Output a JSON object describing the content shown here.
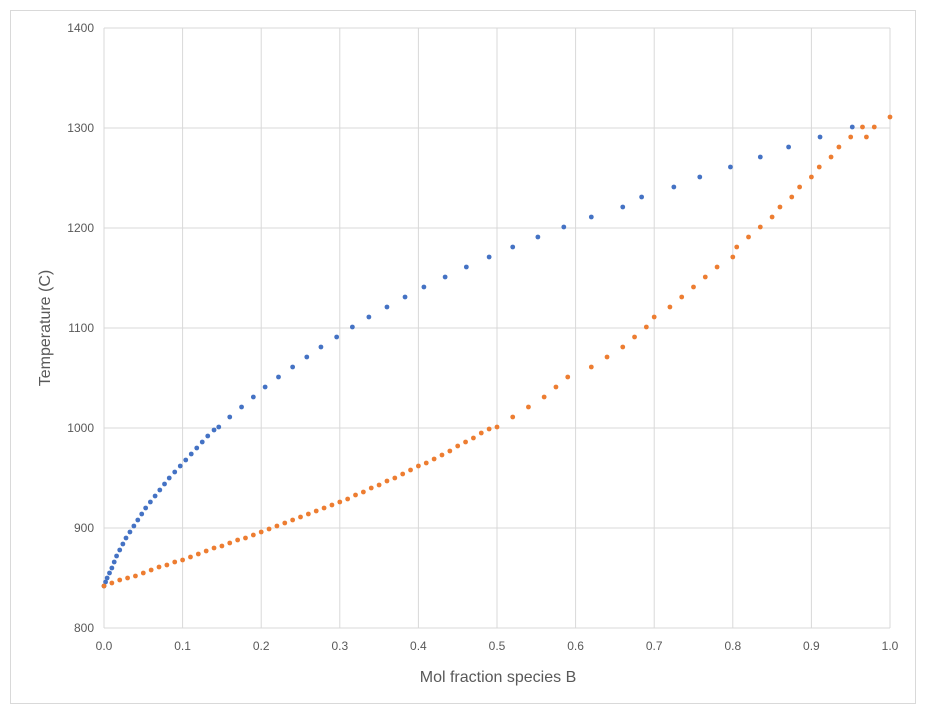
{
  "chart_data": {
    "type": "scatter",
    "title": "",
    "xlabel": "Mol fraction species B",
    "ylabel": "Temperature (C)",
    "xlim": [
      0,
      1
    ],
    "ylim": [
      800,
      1400
    ],
    "x_ticks": [
      "0.0",
      "0.1",
      "0.2",
      "0.3",
      "0.4",
      "0.5",
      "0.6",
      "0.7",
      "0.8",
      "0.9",
      "1.0"
    ],
    "y_ticks": [
      "800",
      "900",
      "1000",
      "1100",
      "1200",
      "1300",
      "1400"
    ],
    "grid": true,
    "legend": "none",
    "colors": {
      "series1": "#4472c4",
      "series2": "#ed7d31",
      "grid": "#d9d9d9"
    },
    "series": [
      {
        "points": [
          [
            0.0,
            842
          ],
          [
            0.002,
            846
          ],
          [
            0.004,
            850
          ],
          [
            0.007,
            855
          ],
          [
            0.01,
            860
          ],
          [
            0.013,
            866
          ],
          [
            0.016,
            872
          ],
          [
            0.02,
            878
          ],
          [
            0.024,
            884
          ],
          [
            0.028,
            890
          ],
          [
            0.033,
            896
          ],
          [
            0.038,
            902
          ],
          [
            0.043,
            908
          ],
          [
            0.048,
            914
          ],
          [
            0.053,
            920
          ],
          [
            0.059,
            926
          ],
          [
            0.065,
            932
          ],
          [
            0.071,
            938
          ],
          [
            0.077,
            944
          ],
          [
            0.083,
            950
          ],
          [
            0.09,
            956
          ],
          [
            0.097,
            962
          ],
          [
            0.104,
            968
          ],
          [
            0.111,
            974
          ],
          [
            0.118,
            980
          ],
          [
            0.125,
            986
          ],
          [
            0.132,
            992
          ],
          [
            0.14,
            998
          ],
          [
            0.146,
            1001
          ],
          [
            0.16,
            1011
          ],
          [
            0.175,
            1021
          ],
          [
            0.19,
            1031
          ],
          [
            0.205,
            1041
          ],
          [
            0.222,
            1051
          ],
          [
            0.24,
            1061
          ],
          [
            0.258,
            1071
          ],
          [
            0.276,
            1081
          ],
          [
            0.296,
            1091
          ],
          [
            0.316,
            1101
          ],
          [
            0.337,
            1111
          ],
          [
            0.36,
            1121
          ],
          [
            0.383,
            1131
          ],
          [
            0.407,
            1141
          ],
          [
            0.434,
            1151
          ],
          [
            0.461,
            1161
          ],
          [
            0.49,
            1171
          ],
          [
            0.52,
            1181
          ],
          [
            0.552,
            1191
          ],
          [
            0.585,
            1201
          ],
          [
            0.62,
            1211
          ],
          [
            0.66,
            1221
          ],
          [
            0.684,
            1231
          ],
          [
            0.725,
            1241
          ],
          [
            0.758,
            1251
          ],
          [
            0.797,
            1261
          ],
          [
            0.835,
            1271
          ],
          [
            0.871,
            1281
          ],
          [
            0.911,
            1291
          ],
          [
            0.952,
            1301
          ]
        ]
      },
      {
        "points": [
          [
            0.0,
            842
          ],
          [
            0.01,
            845
          ],
          [
            0.02,
            848
          ],
          [
            0.03,
            850
          ],
          [
            0.04,
            852
          ],
          [
            0.05,
            855
          ],
          [
            0.06,
            858
          ],
          [
            0.07,
            861
          ],
          [
            0.08,
            863
          ],
          [
            0.09,
            866
          ],
          [
            0.1,
            868
          ],
          [
            0.11,
            871
          ],
          [
            0.12,
            874
          ],
          [
            0.13,
            877
          ],
          [
            0.14,
            880
          ],
          [
            0.15,
            882
          ],
          [
            0.16,
            885
          ],
          [
            0.17,
            888
          ],
          [
            0.18,
            890
          ],
          [
            0.19,
            893
          ],
          [
            0.2,
            896
          ],
          [
            0.21,
            899
          ],
          [
            0.22,
            902
          ],
          [
            0.23,
            905
          ],
          [
            0.24,
            908
          ],
          [
            0.25,
            911
          ],
          [
            0.26,
            914
          ],
          [
            0.27,
            917
          ],
          [
            0.28,
            920
          ],
          [
            0.29,
            923
          ],
          [
            0.3,
            926
          ],
          [
            0.31,
            929
          ],
          [
            0.32,
            933
          ],
          [
            0.33,
            936
          ],
          [
            0.34,
            940
          ],
          [
            0.35,
            943
          ],
          [
            0.36,
            947
          ],
          [
            0.37,
            950
          ],
          [
            0.38,
            954
          ],
          [
            0.39,
            958
          ],
          [
            0.4,
            962
          ],
          [
            0.41,
            965
          ],
          [
            0.42,
            969
          ],
          [
            0.43,
            973
          ],
          [
            0.44,
            977
          ],
          [
            0.45,
            982
          ],
          [
            0.46,
            986
          ],
          [
            0.47,
            990
          ],
          [
            0.48,
            995
          ],
          [
            0.49,
            999
          ],
          [
            0.5,
            1001
          ],
          [
            0.52,
            1011
          ],
          [
            0.54,
            1021
          ],
          [
            0.56,
            1031
          ],
          [
            0.575,
            1041
          ],
          [
            0.59,
            1051
          ],
          [
            0.62,
            1061
          ],
          [
            0.64,
            1071
          ],
          [
            0.66,
            1081
          ],
          [
            0.675,
            1091
          ],
          [
            0.69,
            1101
          ],
          [
            0.7,
            1111
          ],
          [
            0.72,
            1121
          ],
          [
            0.735,
            1131
          ],
          [
            0.75,
            1141
          ],
          [
            0.765,
            1151
          ],
          [
            0.78,
            1161
          ],
          [
            0.8,
            1171
          ],
          [
            0.805,
            1181
          ],
          [
            0.82,
            1191
          ],
          [
            0.835,
            1201
          ],
          [
            0.85,
            1211
          ],
          [
            0.86,
            1221
          ],
          [
            0.875,
            1231
          ],
          [
            0.885,
            1241
          ],
          [
            0.9,
            1251
          ],
          [
            0.91,
            1261
          ],
          [
            0.925,
            1271
          ],
          [
            0.935,
            1281
          ],
          [
            0.95,
            1291
          ],
          [
            0.965,
            1301
          ],
          [
            0.98,
            1301
          ],
          [
            0.97,
            1291
          ],
          [
            1.0,
            1311
          ]
        ]
      }
    ]
  }
}
